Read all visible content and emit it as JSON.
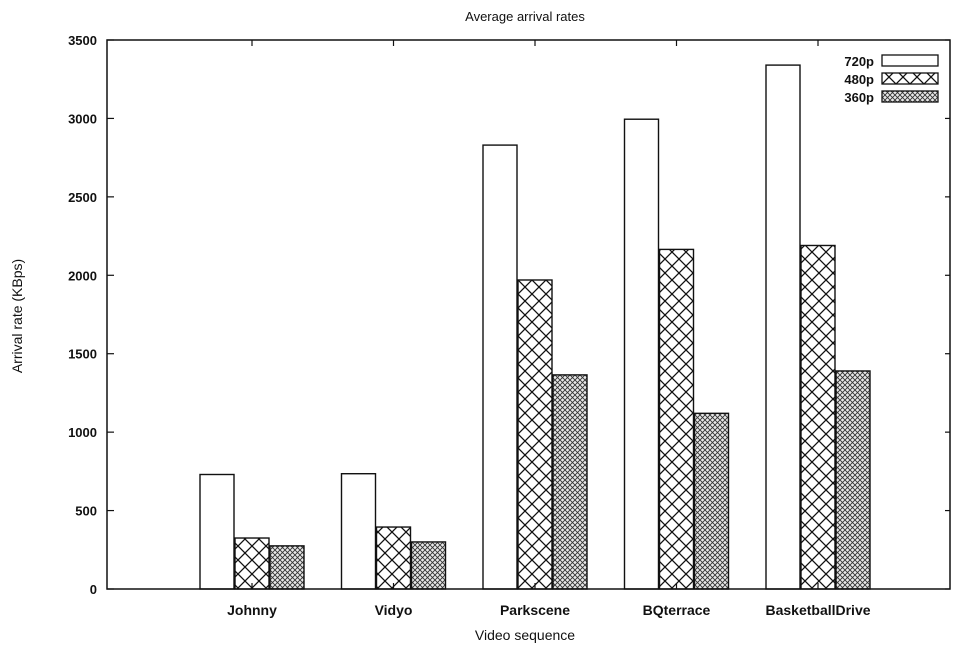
{
  "chart_data": {
    "type": "bar",
    "title": "Average arrival rates",
    "xlabel": "Video sequence",
    "ylabel": "Arrival rate (KBps)",
    "categories": [
      "Johnny",
      "Vidyo",
      "Parkscene",
      "BQterrace",
      "BasketballDrive"
    ],
    "ylim": [
      0,
      3500
    ],
    "yticks": [
      0,
      500,
      1000,
      1500,
      2000,
      2500,
      3000,
      3500
    ],
    "grid": false,
    "legend_position": "top-right",
    "series": [
      {
        "name": "720p",
        "values": [
          730,
          735,
          2830,
          2995,
          3340
        ],
        "pattern": "plain"
      },
      {
        "name": "480p",
        "values": [
          325,
          395,
          1970,
          2165,
          2190
        ],
        "pattern": "crosshatch"
      },
      {
        "name": "360p",
        "values": [
          275,
          300,
          1365,
          1120,
          1390
        ],
        "pattern": "dots"
      }
    ]
  }
}
